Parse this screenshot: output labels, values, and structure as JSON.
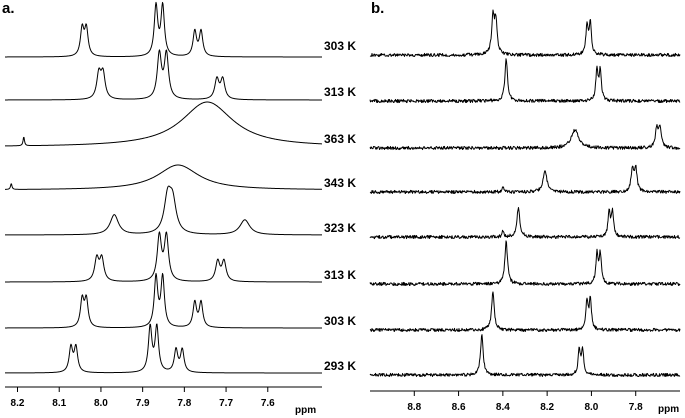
{
  "chart_data": [
    {
      "type": "line",
      "panel_label": "a.",
      "xlabel": "ppm",
      "x_ticks": [
        "8.2",
        "8.1",
        "8.0",
        "7.9",
        "7.8",
        "7.7",
        "7.6"
      ],
      "x_tick_values": [
        8.2,
        8.1,
        8.0,
        7.9,
        7.8,
        7.7,
        7.6
      ],
      "xlim": [
        8.23,
        7.47
      ],
      "x_reversed": true,
      "spectra": [
        {
          "temperature": "",
          "shape": "sharp",
          "baseline_offset": 0,
          "peaks": [
            {
              "ppm": 8.045,
              "height": 0.55,
              "width": 0.005
            },
            {
              "ppm": 8.035,
              "height": 0.55,
              "width": 0.005
            },
            {
              "ppm": 7.868,
              "height": 1.0,
              "width": 0.005
            },
            {
              "ppm": 7.852,
              "height": 1.0,
              "width": 0.005
            },
            {
              "ppm": 7.775,
              "height": 0.5,
              "width": 0.005
            },
            {
              "ppm": 7.76,
              "height": 0.5,
              "width": 0.005
            }
          ]
        },
        {
          "temperature": "",
          "shape": "sharp",
          "baseline_offset": 0,
          "peaks": [
            {
              "ppm": 8.005,
              "height": 0.5,
              "width": 0.006
            },
            {
              "ppm": 7.995,
              "height": 0.5,
              "width": 0.006
            },
            {
              "ppm": 7.86,
              "height": 0.9,
              "width": 0.006
            },
            {
              "ppm": 7.843,
              "height": 0.9,
              "width": 0.006
            },
            {
              "ppm": 7.722,
              "height": 0.4,
              "width": 0.006
            },
            {
              "ppm": 7.708,
              "height": 0.4,
              "width": 0.006
            }
          ]
        },
        {
          "temperature": "",
          "shape": "broad",
          "baseline_offset": 0,
          "peaks": [
            {
              "ppm": 8.185,
              "height": 0.18,
              "width": 0.002
            },
            {
              "ppm": 7.745,
              "height": 0.9,
              "width": 0.075
            }
          ]
        },
        {
          "temperature": "",
          "shape": "broad",
          "baseline_offset": 0,
          "peaks": [
            {
              "ppm": 8.215,
              "height": 0.12,
              "width": 0.002
            },
            {
              "ppm": 7.815,
              "height": 0.5,
              "width": 0.06
            }
          ]
        },
        {
          "temperature": "",
          "shape": "broad",
          "baseline_offset": 0,
          "peaks": [
            {
              "ppm": 7.968,
              "height": 0.4,
              "width": 0.012
            },
            {
              "ppm": 7.84,
              "height": 0.7,
              "width": 0.01
            },
            {
              "ppm": 7.828,
              "height": 0.6,
              "width": 0.01
            },
            {
              "ppm": 7.655,
              "height": 0.3,
              "width": 0.014
            }
          ]
        },
        {
          "temperature": "",
          "shape": "sharp",
          "baseline_offset": 0,
          "peaks": [
            {
              "ppm": 8.01,
              "height": 0.45,
              "width": 0.006
            },
            {
              "ppm": 7.998,
              "height": 0.45,
              "width": 0.006
            },
            {
              "ppm": 7.86,
              "height": 0.9,
              "width": 0.006
            },
            {
              "ppm": 7.843,
              "height": 0.9,
              "width": 0.006
            },
            {
              "ppm": 7.72,
              "height": 0.4,
              "width": 0.006
            },
            {
              "ppm": 7.705,
              "height": 0.4,
              "width": 0.006
            }
          ]
        },
        {
          "temperature": "",
          "shape": "sharp",
          "baseline_offset": 0,
          "peaks": [
            {
              "ppm": 8.045,
              "height": 0.55,
              "width": 0.005
            },
            {
              "ppm": 8.035,
              "height": 0.55,
              "width": 0.005
            },
            {
              "ppm": 7.868,
              "height": 1.0,
              "width": 0.005
            },
            {
              "ppm": 7.852,
              "height": 1.0,
              "width": 0.005
            },
            {
              "ppm": 7.775,
              "height": 0.5,
              "width": 0.005
            },
            {
              "ppm": 7.76,
              "height": 0.5,
              "width": 0.005
            }
          ]
        },
        {
          "temperature": "",
          "shape": "sharp",
          "baseline_offset": 0,
          "peaks": [
            {
              "ppm": 8.072,
              "height": 0.5,
              "width": 0.005
            },
            {
              "ppm": 8.06,
              "height": 0.5,
              "width": 0.005
            },
            {
              "ppm": 7.882,
              "height": 0.9,
              "width": 0.005
            },
            {
              "ppm": 7.866,
              "height": 0.9,
              "width": 0.005
            },
            {
              "ppm": 7.82,
              "height": 0.45,
              "width": 0.005
            },
            {
              "ppm": 7.805,
              "height": 0.45,
              "width": 0.005
            }
          ]
        }
      ]
    },
    {
      "type": "line",
      "panel_label": "b.",
      "xlabel": "ppm",
      "x_ticks": [
        "8.8",
        "8.6",
        "8.4",
        "8.2",
        "8.0",
        "7.8"
      ],
      "x_tick_values": [
        8.8,
        8.6,
        8.4,
        8.2,
        8.0,
        7.8
      ],
      "xlim": [
        9.0,
        7.6
      ],
      "x_reversed": true,
      "spectra": [
        {
          "temperature": "303 K",
          "shape": "noisy",
          "peaks": [
            {
              "ppm": 8.445,
              "height": 0.8,
              "width": 0.007
            },
            {
              "ppm": 8.432,
              "height": 0.75,
              "width": 0.007
            },
            {
              "ppm": 8.02,
              "height": 0.65,
              "width": 0.006
            },
            {
              "ppm": 8.005,
              "height": 0.7,
              "width": 0.006
            }
          ]
        },
        {
          "temperature": "313 K",
          "shape": "noisy",
          "peaks": [
            {
              "ppm": 8.385,
              "height": 0.95,
              "width": 0.007
            },
            {
              "ppm": 7.975,
              "height": 0.7,
              "width": 0.006
            },
            {
              "ppm": 7.96,
              "height": 0.65,
              "width": 0.006
            }
          ]
        },
        {
          "temperature": "363 K",
          "shape": "noisy",
          "peaks": [
            {
              "ppm": 8.075,
              "height": 0.4,
              "width": 0.02
            },
            {
              "ppm": 7.705,
              "height": 0.45,
              "width": 0.007
            },
            {
              "ppm": 7.69,
              "height": 0.45,
              "width": 0.007
            }
          ]
        },
        {
          "temperature": "343 K",
          "shape": "noisy",
          "peaks": [
            {
              "ppm": 8.4,
              "height": 0.12,
              "width": 0.005
            },
            {
              "ppm": 8.21,
              "height": 0.5,
              "width": 0.01
            },
            {
              "ppm": 7.815,
              "height": 0.5,
              "width": 0.007
            },
            {
              "ppm": 7.8,
              "height": 0.5,
              "width": 0.007
            }
          ]
        },
        {
          "temperature": "323 K",
          "shape": "noisy",
          "peaks": [
            {
              "ppm": 8.4,
              "height": 0.12,
              "width": 0.005
            },
            {
              "ppm": 8.33,
              "height": 0.65,
              "width": 0.008
            },
            {
              "ppm": 7.92,
              "height": 0.55,
              "width": 0.006
            },
            {
              "ppm": 7.905,
              "height": 0.55,
              "width": 0.006
            }
          ]
        },
        {
          "temperature": "313 K",
          "shape": "noisy",
          "peaks": [
            {
              "ppm": 8.385,
              "height": 0.95,
              "width": 0.007
            },
            {
              "ppm": 7.975,
              "height": 0.65,
              "width": 0.006
            },
            {
              "ppm": 7.96,
              "height": 0.65,
              "width": 0.006
            }
          ]
        },
        {
          "temperature": "303 K",
          "shape": "noisy",
          "peaks": [
            {
              "ppm": 8.445,
              "height": 0.85,
              "width": 0.007
            },
            {
              "ppm": 8.02,
              "height": 0.65,
              "width": 0.006
            },
            {
              "ppm": 8.005,
              "height": 0.65,
              "width": 0.006
            }
          ]
        },
        {
          "temperature": "293 K",
          "shape": "noisy",
          "peaks": [
            {
              "ppm": 8.495,
              "height": 0.9,
              "width": 0.007
            },
            {
              "ppm": 8.055,
              "height": 0.55,
              "width": 0.006
            },
            {
              "ppm": 8.04,
              "height": 0.55,
              "width": 0.006
            }
          ]
        }
      ]
    }
  ]
}
